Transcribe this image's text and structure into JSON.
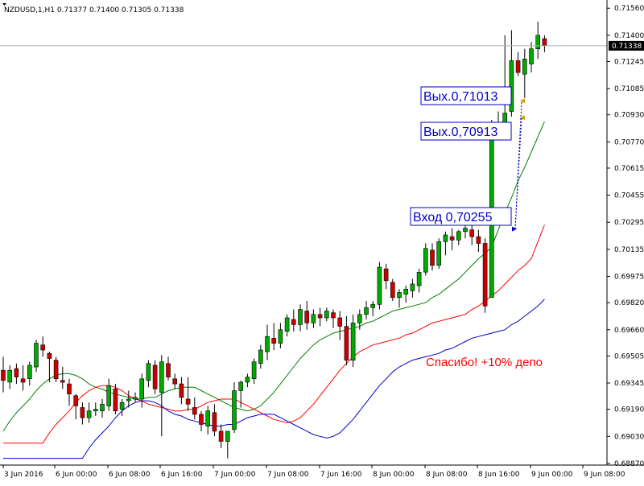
{
  "header": {
    "text": "NZDUSD,1,H1  0.71377 0.71400 0.71305 0.71338"
  },
  "current_price": "0.71338",
  "colors": {
    "bull": "#00aa00",
    "bear": "#cc0000",
    "ma_fast": "#008000",
    "ma_mid": "#ff0000",
    "ma_slow": "#0000cc",
    "annotation_text": "#0000cc",
    "annotation_text_red": "#ff0000",
    "grid": "#e4e4e4"
  },
  "annotations": [
    {
      "id": "exit1",
      "text": "Вых.0,71013",
      "price": 0.71013,
      "color": "#0000cc"
    },
    {
      "id": "exit2",
      "text": "Вых.0,70913",
      "price": 0.70913,
      "color": "#0000cc"
    },
    {
      "id": "entry",
      "text": "Вход 0,70255",
      "price": 0.70255,
      "color": "#0000cc"
    },
    {
      "id": "thanks",
      "text": "Спасибо! +10% депо",
      "color": "#ff0000"
    }
  ],
  "chart_data": {
    "type": "candlestick",
    "symbol": "NZDUSD",
    "timeframe": "H1",
    "ylim": [
      0.6886,
      0.7158
    ],
    "y_ticks": [
      "0.71560",
      "0.71400",
      "0.71245",
      "0.71085",
      "0.70930",
      "0.70770",
      "0.70615",
      "0.70455",
      "0.70295",
      "0.70135",
      "0.69975",
      "0.69820",
      "0.69660",
      "0.69505",
      "0.69345",
      "0.69190",
      "0.69030",
      "0.68870"
    ],
    "x_ticks": [
      "3 Jun 2016",
      "6 Jun 00:00",
      "6 Jun 08:00",
      "6 Jun 16:00",
      "7 Jun 00:00",
      "7 Jun 08:00",
      "7 Jun 16:00",
      "8 Jun 00:00",
      "8 Jun 08:00",
      "8 Jun 16:00",
      "9 Jun 00:00",
      "9 Jun 08:00"
    ],
    "candles": [
      [
        0.6942,
        0.695,
        0.6929,
        0.6936
      ],
      [
        0.6935,
        0.6945,
        0.6931,
        0.6942
      ],
      [
        0.6943,
        0.6946,
        0.6934,
        0.6938
      ],
      [
        0.6937,
        0.6945,
        0.693,
        0.6935
      ],
      [
        0.6937,
        0.6947,
        0.6933,
        0.6945
      ],
      [
        0.6944,
        0.696,
        0.6941,
        0.6958
      ],
      [
        0.6957,
        0.6962,
        0.695,
        0.6954
      ],
      [
        0.6952,
        0.6953,
        0.6935,
        0.6949
      ],
      [
        0.6948,
        0.695,
        0.6935,
        0.6937
      ],
      [
        0.6936,
        0.6944,
        0.6931,
        0.6935
      ],
      [
        0.6934,
        0.6937,
        0.6921,
        0.6928
      ],
      [
        0.6927,
        0.6928,
        0.6913,
        0.6921
      ],
      [
        0.692,
        0.6923,
        0.691,
        0.6914
      ],
      [
        0.6914,
        0.6923,
        0.6911,
        0.6918
      ],
      [
        0.6918,
        0.6923,
        0.6915,
        0.6919
      ],
      [
        0.6918,
        0.6925,
        0.6914,
        0.6922
      ],
      [
        0.6921,
        0.6937,
        0.6918,
        0.6933
      ],
      [
        0.6931,
        0.6934,
        0.6916,
        0.6918
      ],
      [
        0.6919,
        0.6925,
        0.6915,
        0.6923
      ],
      [
        0.6924,
        0.693,
        0.692,
        0.6925
      ],
      [
        0.6925,
        0.6929,
        0.6923,
        0.6926
      ],
      [
        0.6925,
        0.694,
        0.692,
        0.6937
      ],
      [
        0.6936,
        0.6948,
        0.6932,
        0.6946
      ],
      [
        0.6945,
        0.6948,
        0.6928,
        0.6931
      ],
      [
        0.6929,
        0.6951,
        0.6903,
        0.6947
      ],
      [
        0.6946,
        0.695,
        0.6936,
        0.6938
      ],
      [
        0.6937,
        0.694,
        0.6931,
        0.6934
      ],
      [
        0.6934,
        0.6938,
        0.6922,
        0.6926
      ],
      [
        0.6925,
        0.6938,
        0.6918,
        0.6922
      ],
      [
        0.692,
        0.6926,
        0.6913,
        0.6916
      ],
      [
        0.6916,
        0.6918,
        0.6906,
        0.691
      ],
      [
        0.6909,
        0.6921,
        0.6904,
        0.6918
      ],
      [
        0.6917,
        0.6922,
        0.6903,
        0.6906
      ],
      [
        0.6906,
        0.691,
        0.6896,
        0.69
      ],
      [
        0.69,
        0.6904,
        0.689,
        0.6906
      ],
      [
        0.6907,
        0.6935,
        0.6905,
        0.693
      ],
      [
        0.693,
        0.6936,
        0.692,
        0.6935
      ],
      [
        0.6935,
        0.694,
        0.6932,
        0.6938
      ],
      [
        0.6937,
        0.6949,
        0.6934,
        0.6947
      ],
      [
        0.6946,
        0.6957,
        0.6943,
        0.6954
      ],
      [
        0.6953,
        0.6969,
        0.6948,
        0.6962
      ],
      [
        0.6961,
        0.697,
        0.6954,
        0.6958
      ],
      [
        0.6958,
        0.697,
        0.6955,
        0.6966
      ],
      [
        0.6965,
        0.6975,
        0.6962,
        0.6973
      ],
      [
        0.6972,
        0.6978,
        0.6965,
        0.6969
      ],
      [
        0.6969,
        0.6981,
        0.6965,
        0.6978
      ],
      [
        0.6977,
        0.6983,
        0.6966,
        0.697
      ],
      [
        0.697,
        0.6978,
        0.6967,
        0.6975
      ],
      [
        0.6975,
        0.6979,
        0.6968,
        0.6973
      ],
      [
        0.6973,
        0.6979,
        0.6971,
        0.6977
      ],
      [
        0.6976,
        0.6978,
        0.6967,
        0.6973
      ],
      [
        0.6973,
        0.6977,
        0.696,
        0.6968
      ],
      [
        0.6968,
        0.6974,
        0.6945,
        0.6948
      ],
      [
        0.6948,
        0.6975,
        0.6944,
        0.697
      ],
      [
        0.697,
        0.6978,
        0.6966,
        0.6975
      ],
      [
        0.6975,
        0.6983,
        0.6972,
        0.6979
      ],
      [
        0.6979,
        0.6983,
        0.6974,
        0.6981
      ],
      [
        0.6981,
        0.7006,
        0.6978,
        0.7003
      ],
      [
        0.7002,
        0.7005,
        0.699,
        0.6995
      ],
      [
        0.6994,
        0.6996,
        0.6983,
        0.6985
      ],
      [
        0.6985,
        0.699,
        0.6979,
        0.6988
      ],
      [
        0.6987,
        0.6992,
        0.6982,
        0.699
      ],
      [
        0.6989,
        0.6996,
        0.6985,
        0.6993
      ],
      [
        0.6992,
        0.7002,
        0.6988,
        0.7
      ],
      [
        0.7,
        0.7017,
        0.6998,
        0.7014
      ],
      [
        0.7013,
        0.7017,
        0.7001,
        0.7004
      ],
      [
        0.7004,
        0.702,
        0.7002,
        0.7018
      ],
      [
        0.7018,
        0.7024,
        0.701,
        0.7022
      ],
      [
        0.7021,
        0.7026,
        0.7013,
        0.7019
      ],
      [
        0.7019,
        0.7025,
        0.7016,
        0.7024
      ],
      [
        0.7024,
        0.7029,
        0.702,
        0.7026
      ],
      [
        0.7025,
        0.703,
        0.7016,
        0.7021
      ],
      [
        0.7021,
        0.7025,
        0.7012,
        0.7017
      ],
      [
        0.7017,
        0.702,
        0.6976,
        0.698
      ],
      [
        0.6985,
        0.709,
        0.6985,
        0.7087
      ],
      [
        0.7086,
        0.7095,
        0.7078,
        0.7082
      ],
      [
        0.7082,
        0.714,
        0.708,
        0.7094
      ],
      [
        0.7095,
        0.7143,
        0.7092,
        0.7125
      ],
      [
        0.7125,
        0.713,
        0.7116,
        0.7118
      ],
      [
        0.7117,
        0.7132,
        0.7103,
        0.7126
      ],
      [
        0.7123,
        0.7136,
        0.7118,
        0.7132
      ],
      [
        0.7132,
        0.7148,
        0.7126,
        0.714
      ],
      [
        0.7138,
        0.714,
        0.713,
        0.7134
      ]
    ],
    "ma_fast": [
      0.6906,
      0.6912,
      0.6917,
      0.6921,
      0.6925,
      0.693,
      0.6934,
      0.6937,
      0.6939,
      0.694,
      0.694,
      0.6939,
      0.6937,
      0.6934,
      0.6932,
      0.6931,
      0.6929,
      0.6928,
      0.6927,
      0.6926,
      0.6925,
      0.6925,
      0.6926,
      0.6926,
      0.6928,
      0.693,
      0.6931,
      0.6932,
      0.6932,
      0.6932,
      0.693,
      0.6928,
      0.6926,
      0.6924,
      0.6922,
      0.692,
      0.6919,
      0.6918,
      0.6919,
      0.6921,
      0.6925,
      0.6929,
      0.6934,
      0.6939,
      0.6944,
      0.6949,
      0.6953,
      0.6957,
      0.696,
      0.6962,
      0.6964,
      0.6965,
      0.6966,
      0.6967,
      0.6968,
      0.697,
      0.6971,
      0.6973,
      0.6975,
      0.6977,
      0.6978,
      0.6979,
      0.698,
      0.6981,
      0.6982,
      0.6985,
      0.6987,
      0.699,
      0.6993,
      0.6996,
      0.7,
      0.7004,
      0.7008,
      0.7011,
      0.7015,
      0.7025,
      0.7035,
      0.7044,
      0.7054,
      0.7062,
      0.7071,
      0.708,
      0.7089
    ]
  }
}
